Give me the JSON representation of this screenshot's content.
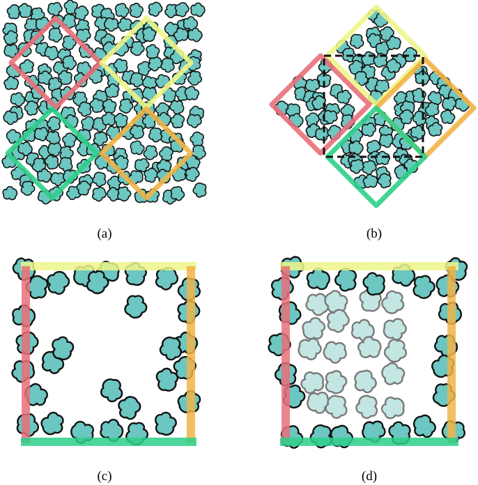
{
  "panels": [
    {
      "id": "a",
      "caption": "(a)"
    },
    {
      "id": "b",
      "caption": "(b)"
    },
    {
      "id": "c",
      "caption": "(c)"
    },
    {
      "id": "d",
      "caption": "(d)"
    }
  ],
  "colors": {
    "particle_fill": "#6cc6c1",
    "particle_ghost_fill": "#c3e6e3",
    "particle_outline": "#111111",
    "ghost_outline": "#7a7a7a",
    "red_outline": "#e05a5a",
    "red": "#e8707a",
    "yellow": "#eef58a",
    "green": "#2fcf8a",
    "orange": "#f0b447",
    "dashed_box": "#111111"
  }
}
